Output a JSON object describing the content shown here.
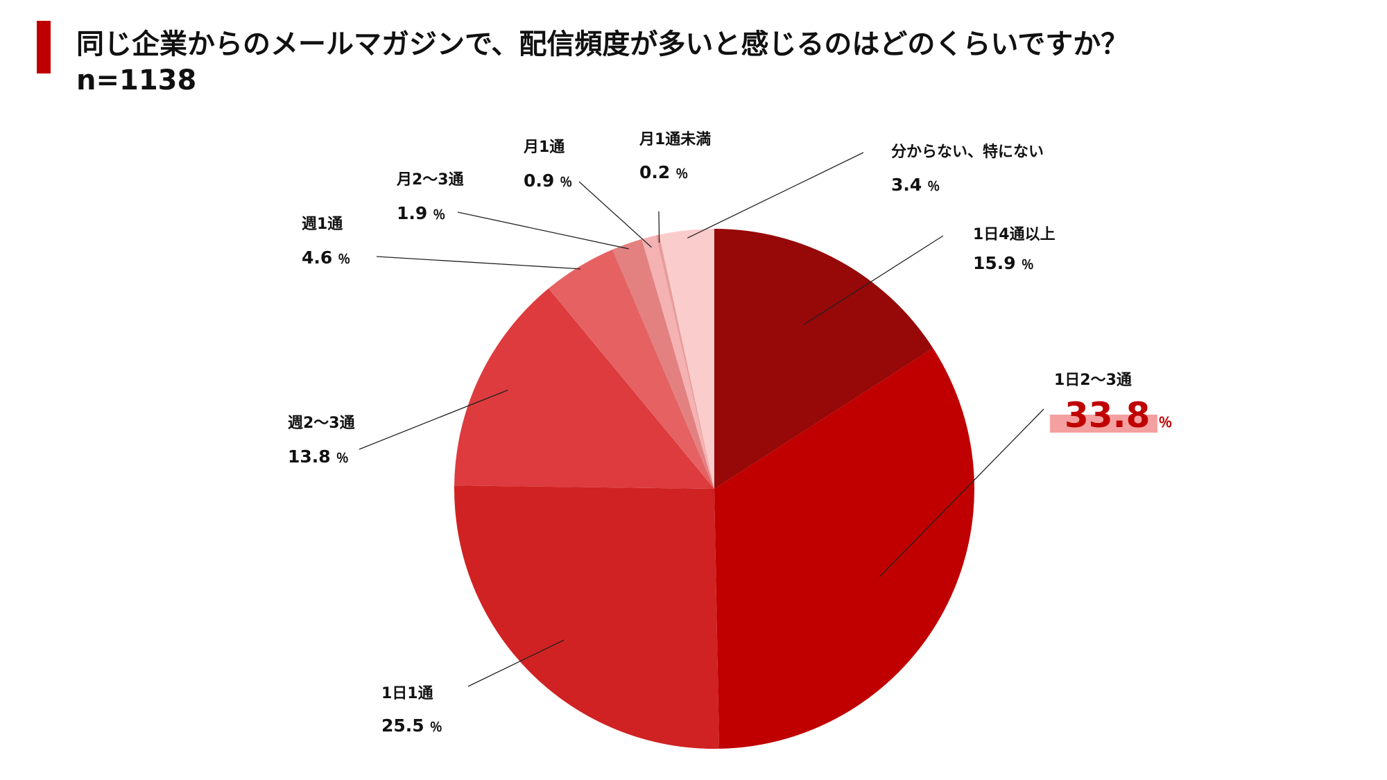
{
  "header": {
    "title": "同じ企業からのメールマガジンで、配信頻度が多いと感じるのはどのくらいですか？",
    "subtitle": "n=1138",
    "accent_color": "#c00000"
  },
  "chart_data": {
    "type": "pie",
    "start_angle_deg": 0,
    "direction": "clockwise",
    "unit": "％",
    "highlight_color": "#c00000",
    "highlight_bg": "#f4a0a0",
    "slices": [
      {
        "label": "1日4通以上",
        "value": 15.9,
        "display": "15.9",
        "color": "#970808"
      },
      {
        "label": "1日2～3通",
        "value": 33.8,
        "display": "33.8",
        "color": "#c00000",
        "highlight": true
      },
      {
        "label": "1日1通",
        "value": 25.5,
        "display": "25.5",
        "color": "#d02222"
      },
      {
        "label": "週2～3通",
        "value": 13.8,
        "display": "13.8",
        "color": "#dd3b3e"
      },
      {
        "label": "週1通",
        "value": 4.6,
        "display": "4.6",
        "color": "#e66262"
      },
      {
        "label": "月2～3通",
        "value": 1.9,
        "display": "1.9",
        "color": "#e38181"
      },
      {
        "label": "月1通",
        "value": 0.9,
        "display": "0.9",
        "color": "#f4b2b2"
      },
      {
        "label": "月1通未満",
        "value": 0.2,
        "display": "0.2",
        "color": "#e89a9a"
      },
      {
        "label": "分からない、特にない",
        "value": 3.4,
        "display": "3.4",
        "color": "#fbcccc"
      }
    ]
  }
}
